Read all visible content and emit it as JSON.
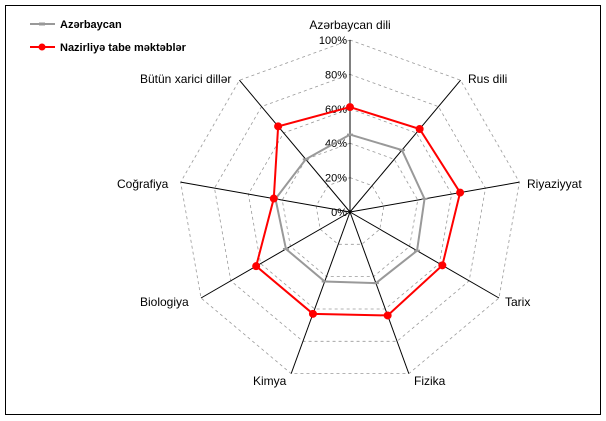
{
  "chart_data": {
    "type": "radar",
    "title": "",
    "categories": [
      "Azərbaycan dili",
      "Rus dili",
      "Riyaziyyat",
      "Tarix",
      "Fizika",
      "Kimya",
      "Biologiya",
      "Coğrafiya",
      "Bütün xarici dillər"
    ],
    "series": [
      {
        "name": "Azərbaycan",
        "color": "#999999",
        "marker": "dash",
        "values": [
          45,
          47,
          44,
          45,
          44,
          43,
          43,
          44,
          40
        ]
      },
      {
        "name": "Nazirliyə tabe məktəblər",
        "color": "#ff0000",
        "marker": "circle",
        "values": [
          61,
          63,
          65,
          62,
          64,
          63,
          63,
          45,
          65
        ]
      }
    ],
    "rlim": [
      0,
      100
    ],
    "tick_labels": [
      "0%",
      "20%",
      "40%",
      "60%",
      "80%",
      "100%"
    ],
    "ticks": [
      0,
      20,
      40,
      60,
      80,
      100
    ],
    "grid": true,
    "legend_position": "top-left"
  }
}
